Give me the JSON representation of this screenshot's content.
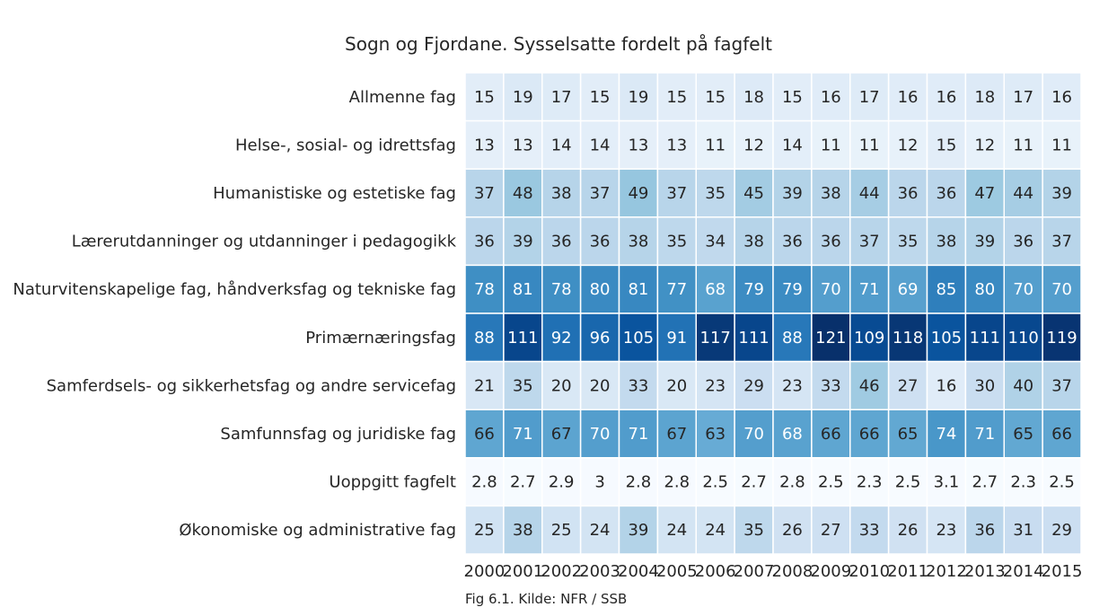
{
  "chart_data": {
    "type": "heatmap",
    "title": "Sogn og Fjordane. Sysselsatte fordelt på fagfelt",
    "caption": "Fig 6.1. Kilde: NFR / SSB",
    "colormap": "Blues",
    "color_low": "#f7fbff",
    "color_high": "#08306b",
    "grid_lines": true,
    "colorbar": false,
    "x": [
      "2000",
      "2001",
      "2002",
      "2003",
      "2004",
      "2005",
      "2006",
      "2007",
      "2008",
      "2009",
      "2010",
      "2011",
      "2012",
      "2013",
      "2014",
      "2015"
    ],
    "y": [
      "Allmenne fag",
      "Helse-, sosial- og idrettsfag",
      "Humanistiske og estetiske fag",
      "Lærerutdanninger og utdanninger i pedagogikk",
      "Naturvitenskapelige fag, håndverksfag og tekniske fag",
      "Primærnæringsfag",
      "Samferdsels- og sikkerhetsfag og andre servicefag",
      "Samfunnsfag og juridiske fag",
      "Uoppgitt fagfelt",
      "Økonomiske og administrative fag"
    ],
    "values": [
      [
        15,
        19,
        17,
        15,
        19,
        15,
        15,
        18,
        15,
        16,
        17,
        16,
        16,
        18,
        17,
        16
      ],
      [
        13,
        13,
        14,
        14,
        13,
        13,
        11,
        12,
        14,
        11,
        11,
        12,
        15,
        12,
        11,
        11
      ],
      [
        37,
        48,
        38,
        37,
        49,
        37,
        35,
        45,
        39,
        38,
        44,
        36,
        36,
        47,
        44,
        39
      ],
      [
        36,
        39,
        36,
        36,
        38,
        35,
        34,
        38,
        36,
        36,
        37,
        35,
        38,
        39,
        36,
        37
      ],
      [
        78,
        81,
        78,
        80,
        81,
        77,
        68,
        79,
        79,
        70,
        71,
        69,
        85,
        80,
        70,
        70
      ],
      [
        88,
        111,
        92,
        96,
        105,
        91,
        117,
        111,
        88,
        121,
        109,
        118,
        105,
        111,
        110,
        119
      ],
      [
        21,
        35,
        20,
        20,
        33,
        20,
        23,
        29,
        23,
        33,
        46,
        27,
        16,
        30,
        40,
        37
      ],
      [
        66,
        71,
        67,
        70,
        71,
        67,
        63,
        70,
        68,
        66,
        66,
        65,
        74,
        71,
        65,
        66
      ],
      [
        2.8,
        2.7,
        2.9,
        3,
        2.8,
        2.8,
        2.5,
        2.7,
        2.8,
        2.5,
        2.3,
        2.5,
        3.1,
        2.7,
        2.3,
        2.5
      ],
      [
        25,
        38,
        25,
        24,
        39,
        24,
        24,
        35,
        26,
        27,
        33,
        26,
        23,
        36,
        31,
        29
      ]
    ],
    "value_range": [
      2.3,
      121
    ]
  }
}
